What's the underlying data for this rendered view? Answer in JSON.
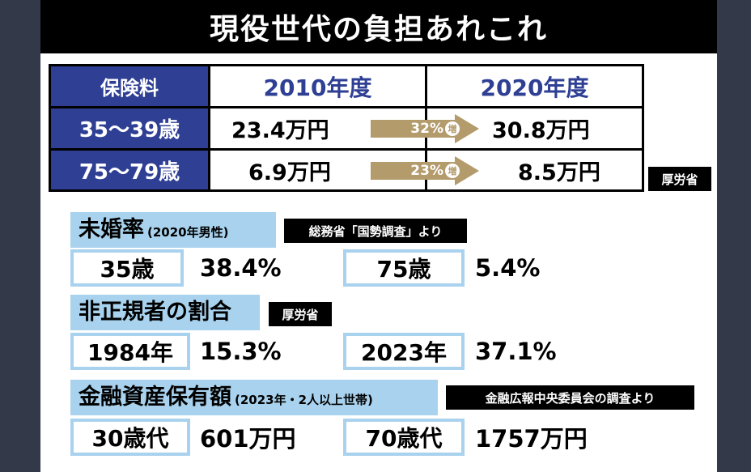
{
  "title": "現役世代の負担あれこれ",
  "insurance": {
    "header_label": "保険料",
    "year_from": "2010年度",
    "year_to": "2020年度",
    "rows": [
      {
        "age": "35～39歳",
        "from": "23.4万円",
        "change_pct": "32%",
        "change_word": "増",
        "to": "30.8万円"
      },
      {
        "age": "75～79歳",
        "from": "6.9万円",
        "change_pct": "23%",
        "change_word": "増",
        "to": "8.5万円"
      }
    ],
    "source": "厚労省"
  },
  "unmarried": {
    "title": "未婚率",
    "subtitle": "(2020年男性)",
    "source": "総務省「国勢調査」より",
    "left_label": "35歳",
    "left_value": "38.4%",
    "right_label": "75歳",
    "right_value": "5.4%"
  },
  "nonregular": {
    "title": "非正規者の割合",
    "source": "厚労省",
    "left_label": "1984年",
    "left_value": "15.3%",
    "right_label": "2023年",
    "right_value": "37.1%"
  },
  "assets": {
    "title": "金融資産保有額",
    "subtitle": "(2023年・2人以上世帯)",
    "source": "金融広報中央委員会の調査より",
    "left_label": "30歳代",
    "left_value": "601万円",
    "right_label": "70歳代",
    "right_value": "1757万円"
  },
  "colors": {
    "header_blue": "#2e3f94",
    "section_light_blue": "#a8d2ed",
    "arrow_tan": "#b39b6c",
    "backdrop": "#34394a"
  }
}
